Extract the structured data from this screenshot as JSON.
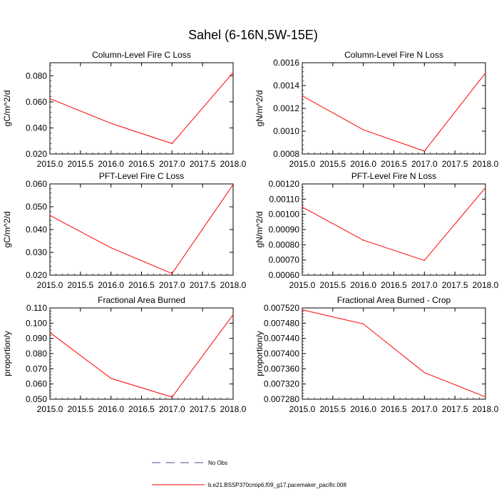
{
  "title": "Sahel (6-16N,5W-15E)",
  "colors": {
    "model": "#ff0000",
    "obs": "#5a4a8a",
    "axes": "#000000"
  },
  "legend": {
    "obs_label": "No Obs",
    "model_label": "b.e21.BSSP370cmip6.f09_g17.pacemaker_pacific.008"
  },
  "chart_data": [
    {
      "type": "line",
      "title": "Column-Level Fire C Loss",
      "xlabel": "",
      "ylabel": "gC/m^2/d",
      "xlim": [
        2015.0,
        2018.0
      ],
      "ylim": [
        0.02,
        0.09
      ],
      "x": [
        2015,
        2016,
        2017,
        2018
      ],
      "xticks": [
        "2015.0",
        "2015.5",
        "2016.0",
        "2016.5",
        "2017.0",
        "2017.5",
        "2018.0"
      ],
      "yticks": [
        "0.020",
        "0.040",
        "0.060",
        "0.080"
      ],
      "series": [
        {
          "name": "b.e21.BSSP370cmip6.f09_g17.pacemaker_pacific.008",
          "values": [
            0.0625,
            0.0435,
            0.028,
            0.0825
          ]
        }
      ]
    },
    {
      "type": "line",
      "title": "Column-Level Fire N Loss",
      "xlabel": "",
      "ylabel": "gN/m^2/d",
      "xlim": [
        2015.0,
        2018.0
      ],
      "ylim": [
        0.0008,
        0.0016
      ],
      "x": [
        2015,
        2016,
        2017,
        2018
      ],
      "xticks": [
        "2015.0",
        "2015.5",
        "2016.0",
        "2016.5",
        "2017.0",
        "2017.5",
        "2018.0"
      ],
      "yticks": [
        "0.0008",
        "0.0010",
        "0.0012",
        "0.0014",
        "0.0016"
      ],
      "series": [
        {
          "name": "b.e21.BSSP370cmip6.f09_g17.pacemaker_pacific.008",
          "values": [
            0.00131,
            0.001012,
            0.000825,
            0.00151
          ]
        }
      ]
    },
    {
      "type": "line",
      "title": "PFT-Level Fire C Loss",
      "xlabel": "",
      "ylabel": "gC/m^2/d",
      "xlim": [
        2015.0,
        2018.0
      ],
      "ylim": [
        0.02,
        0.06
      ],
      "x": [
        2015,
        2016,
        2017,
        2018
      ],
      "xticks": [
        "2015.0",
        "2015.5",
        "2016.0",
        "2016.5",
        "2017.0",
        "2017.5",
        "2018.0"
      ],
      "yticks": [
        "0.020",
        "0.030",
        "0.040",
        "0.050",
        "0.060"
      ],
      "series": [
        {
          "name": "b.e21.BSSP370cmip6.f09_g17.pacemaker_pacific.008",
          "values": [
            0.0462,
            0.032,
            0.0207,
            0.0597
          ]
        }
      ]
    },
    {
      "type": "line",
      "title": "PFT-Level Fire N Loss",
      "xlabel": "",
      "ylabel": "gN/m^2/d",
      "xlim": [
        2015.0,
        2018.0
      ],
      "ylim": [
        0.0006,
        0.0012
      ],
      "x": [
        2015,
        2016,
        2017,
        2018
      ],
      "xticks": [
        "2015.0",
        "2015.5",
        "2016.0",
        "2016.5",
        "2017.0",
        "2017.5",
        "2018.0"
      ],
      "yticks": [
        "0.00060",
        "0.00070",
        "0.00080",
        "0.00090",
        "0.00100",
        "0.00110",
        "0.00120"
      ],
      "series": [
        {
          "name": "b.e21.BSSP370cmip6.f09_g17.pacemaker_pacific.008",
          "values": [
            0.001048,
            0.00083,
            0.000697,
            0.001175
          ]
        }
      ]
    },
    {
      "type": "line",
      "title": "Fractional Area Burned",
      "xlabel": "",
      "ylabel": "proportion/y",
      "xlim": [
        2015.0,
        2018.0
      ],
      "ylim": [
        0.05,
        0.11
      ],
      "x": [
        2015,
        2016,
        2017,
        2018
      ],
      "xticks": [
        "2015.0",
        "2015.5",
        "2016.0",
        "2016.5",
        "2017.0",
        "2017.5",
        "2018.0"
      ],
      "yticks": [
        "0.050",
        "0.060",
        "0.070",
        "0.080",
        "0.090",
        "0.100",
        "0.110"
      ],
      "series": [
        {
          "name": "b.e21.BSSP370cmip6.f09_g17.pacemaker_pacific.008",
          "values": [
            0.0938,
            0.0637,
            0.0514,
            0.1055
          ]
        }
      ]
    },
    {
      "type": "line",
      "title": "Fractional Area Burned - Crop",
      "xlabel": "",
      "ylabel": "proportion/y",
      "xlim": [
        2015.0,
        2018.0
      ],
      "ylim": [
        0.00728,
        0.00752
      ],
      "x": [
        2015,
        2016,
        2017,
        2018
      ],
      "xticks": [
        "2015.0",
        "2015.5",
        "2016.0",
        "2016.5",
        "2017.0",
        "2017.5",
        "2018.0"
      ],
      "yticks": [
        "0.007280",
        "0.007320",
        "0.007360",
        "0.007400",
        "0.007440",
        "0.007480",
        "0.007520"
      ],
      "series": [
        {
          "name": "b.e21.BSSP370cmip6.f09_g17.pacemaker_pacific.008",
          "values": [
            0.007515,
            0.007478,
            0.00735,
            0.007286
          ]
        }
      ]
    }
  ]
}
